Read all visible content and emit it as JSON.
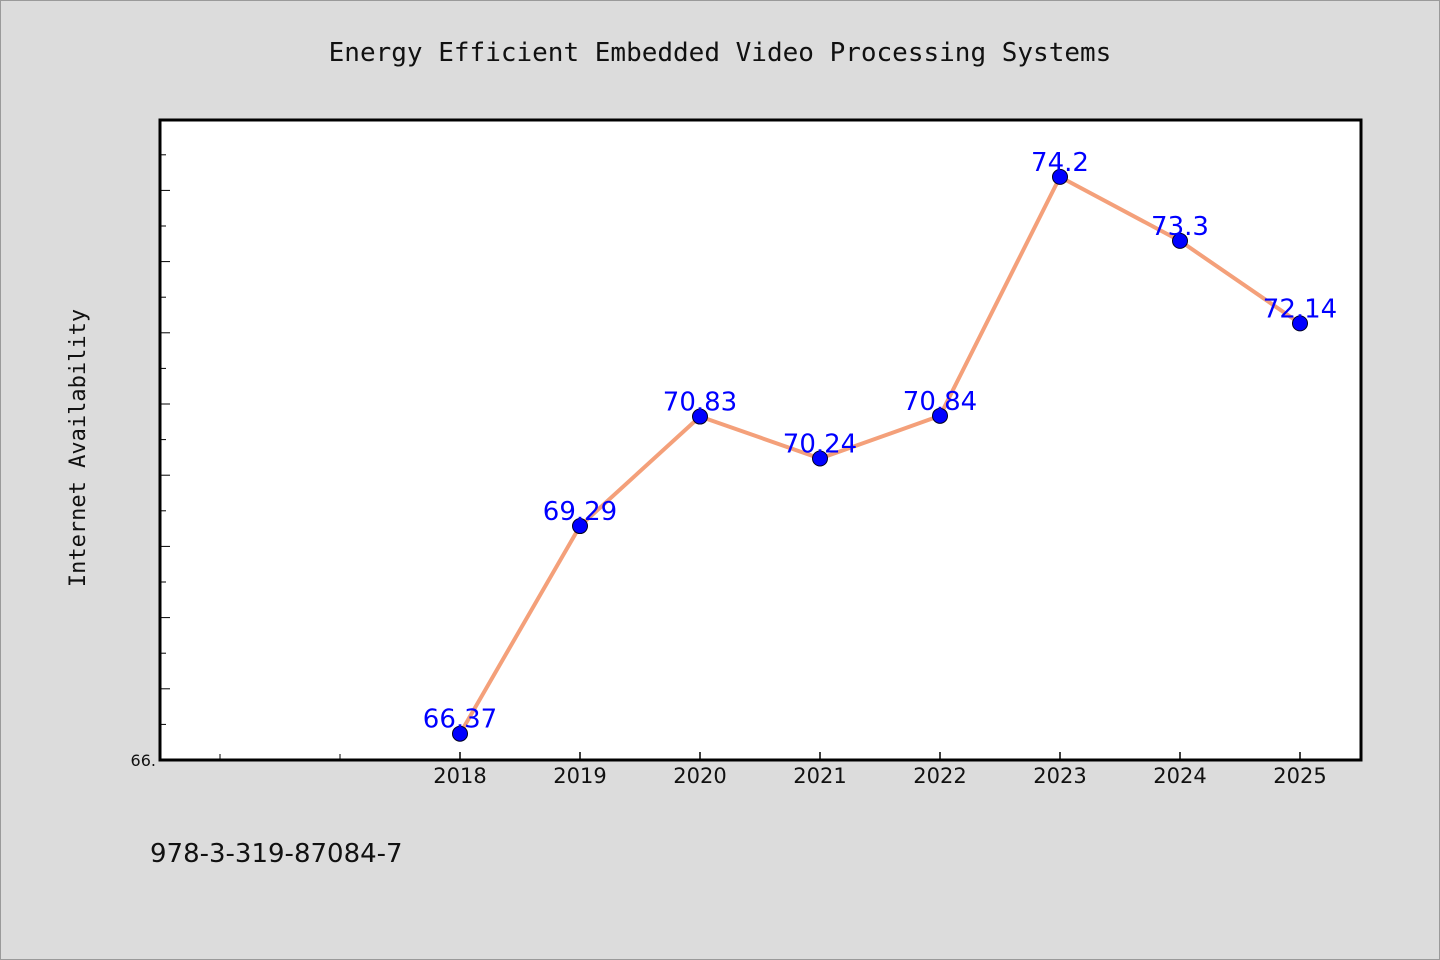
{
  "chart_data": {
    "type": "line",
    "title": "Energy Efficient Embedded Video Processing Systems",
    "xlabel": "",
    "ylabel": "Internet Availability",
    "categories": [
      "2018",
      "2019",
      "2020",
      "2021",
      "2022",
      "2023",
      "2024",
      "2025"
    ],
    "series": [
      {
        "values": [
          66.37,
          69.29,
          70.83,
          70.24,
          70.84,
          74.2,
          73.3,
          72.14
        ],
        "labels": [
          "66.37",
          "69.29",
          "70.83",
          "70.24",
          "70.84",
          "74.2",
          "73.3",
          "72.14"
        ]
      }
    ],
    "ylim": [
      66.0,
      75.0
    ],
    "y_tick_labels": [
      "66."
    ],
    "grid": false,
    "legend": "none",
    "colors": {
      "line": "#f4a07a",
      "marker": "#0000ff",
      "data_label": "#0000ff",
      "background": "#dcdcdc",
      "plot_background": "#ffffff"
    }
  },
  "footer": {
    "isbn": "978-3-319-87084-7"
  }
}
